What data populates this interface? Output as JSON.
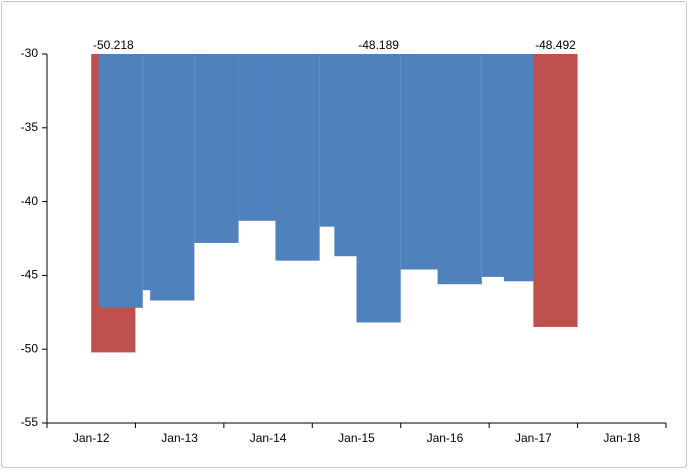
{
  "chart_data": {
    "type": "bar",
    "xlim": [
      "2011-07",
      "2018-07"
    ],
    "xticks": [
      {
        "value": "2012-01",
        "label": "Jan-12"
      },
      {
        "value": "2013-01",
        "label": "Jan-13"
      },
      {
        "value": "2014-01",
        "label": "Jan-14"
      },
      {
        "value": "2015-01",
        "label": "Jan-15"
      },
      {
        "value": "2016-01",
        "label": "Jan-16"
      },
      {
        "value": "2017-01",
        "label": "Jan-17"
      },
      {
        "value": "2018-01",
        "label": "Jan-18"
      }
    ],
    "ylim": [
      -55,
      -30
    ],
    "yticks": [
      -55,
      -50,
      -45,
      -40,
      -35,
      -30
    ],
    "grid": false,
    "series": [
      {
        "color": "#c0504d",
        "x": [
          "2012-01"
        ],
        "values": [
          -50.218
        ],
        "value_labels": [
          "-50.218"
        ]
      },
      {
        "color": "#4f81bd",
        "x": [
          "2012-02",
          "2012-08",
          "2012-09",
          "2013-03",
          "2013-09",
          "2014-01",
          "2014-02",
          "2014-08",
          "2014-10",
          "2015-01",
          "2015-07",
          "2015-12",
          "2016-06",
          "2016-09"
        ],
        "values": [
          -47.2,
          -46.0,
          -46.7,
          -42.8,
          -41.3,
          -40.9,
          -44.0,
          -41.7,
          -43.7,
          -48.189,
          -44.6,
          -45.6,
          -45.1,
          -45.4
        ],
        "value_labels": [
          null,
          null,
          null,
          null,
          null,
          null,
          null,
          null,
          null,
          "-48.189",
          null,
          null,
          null,
          null
        ]
      },
      {
        "color": "#c0504d",
        "x": [
          "2017-01"
        ],
        "values": [
          -48.492
        ],
        "value_labels": [
          "-48.492"
        ]
      }
    ]
  }
}
